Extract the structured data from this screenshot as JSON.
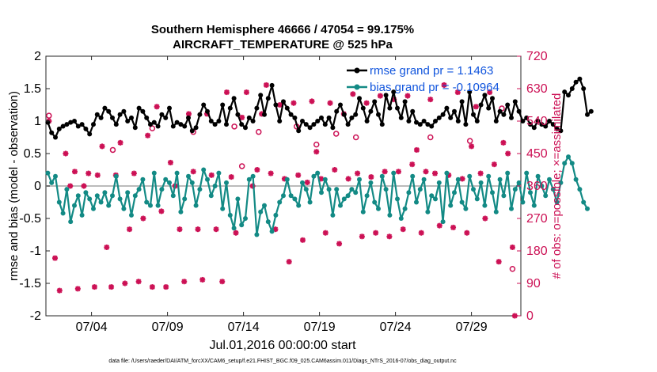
{
  "chart_data": {
    "type": "line",
    "title": "Southern Hemisphere 46666 / 47054 = 99.175%",
    "subtitle": "AIRCRAFT_TEMPERATURE @ 525 hPa",
    "xlabel": "Jul.01,2016 00:00:00 start",
    "ylabel": "rmse and bias (model - observation)",
    "y2label": "# of obs: o=possible; ×=assimilated",
    "footer": "data file: /Users/raeder/DAI/ATM_forcXX/CAM6_setup/f.e21.FHIST_BGC.f09_025.CAM6assim.011/Diags_NTrS_2016-07/obs_diag_output.nc",
    "xlim": [
      1,
      32.25
    ],
    "ylim": [
      -2,
      2
    ],
    "y2lim": [
      0,
      720
    ],
    "x_ticks": [
      {
        "value": 4,
        "label": "07/04"
      },
      {
        "value": 9,
        "label": "07/09"
      },
      {
        "value": 14,
        "label": "07/14"
      },
      {
        "value": 19,
        "label": "07/19"
      },
      {
        "value": 24,
        "label": "07/24"
      },
      {
        "value": 29,
        "label": "07/29"
      }
    ],
    "y_ticks": [
      "-2",
      "-1.5",
      "-1",
      "-0.5",
      "0",
      "0.5",
      "1",
      "1.5",
      "2"
    ],
    "y2_ticks": [
      "0",
      "90",
      "180",
      "270",
      "360",
      "450",
      "540",
      "630",
      "720"
    ],
    "x_start": 1.125,
    "x_step": 0.25,
    "colors": {
      "rmse": "#000000",
      "bias": "#138a85",
      "obs": "#cc1155",
      "zero": "#bbbbbb"
    },
    "series": [
      {
        "name": "rmse grand pr = 1.1463",
        "values": [
          0.98,
          0.82,
          0.75,
          0.88,
          0.92,
          0.95,
          0.98,
          1.0,
          0.92,
          0.95,
          0.88,
          0.8,
          0.95,
          1.1,
          1.05,
          1.2,
          1.15,
          1.05,
          0.95,
          1.1,
          1.15,
          1.0,
          1.05,
          0.9,
          1.2,
          1.15,
          1.05,
          0.95,
          0.98,
          0.92,
          1.1,
          1.05,
          1.2,
          0.92,
          0.98,
          0.95,
          0.92,
          1.05,
          0.85,
          0.9,
          1.1,
          1.25,
          1.15,
          1.0,
          0.95,
          1.0,
          1.25,
          0.95,
          1.2,
          1.35,
          1.1,
          0.95,
          0.9,
          1.05,
          1.0,
          1.2,
          1.4,
          1.1,
          1.35,
          1.55,
          1.25,
          1.0,
          1.3,
          1.2,
          1.1,
          1.05,
          0.85,
          1.0,
          0.95,
          0.9,
          0.95,
          1.0,
          1.05,
          0.95,
          1.05,
          0.9,
          1.15,
          1.25,
          1.1,
          0.95,
          1.05,
          1.1,
          1.35,
          1.2,
          1.0,
          1.15,
          1.3,
          1.1,
          0.95,
          1.4,
          1.2,
          1.45,
          1.2,
          1.05,
          1.3,
          1.0,
          1.15,
          0.98,
          0.95,
          1.0,
          0.95,
          0.92,
          1.0,
          1.05,
          1.1,
          1.2,
          1.05,
          1.15,
          1.0,
          1.3,
          0.95,
          1.45,
          1.1,
          1.0,
          1.25,
          1.4,
          1.2,
          1.35,
          1.0,
          1.15,
          1.1,
          1.25,
          1.05,
          1.3,
          1.15,
          1.0,
          1.05,
          0.95,
          0.9,
          1.0,
          0.95,
          0.92,
          1.0,
          0.95,
          0.88,
          0.85,
          1.45,
          1.4,
          1.5,
          1.6,
          1.65,
          1.5,
          1.1,
          1.15
        ]
      },
      {
        "name": "bias grand pr = -0.10964",
        "values": [
          0.2,
          0.05,
          0.15,
          -0.25,
          -0.42,
          -0.05,
          -0.55,
          -0.3,
          -0.15,
          -0.45,
          -0.1,
          -0.2,
          -0.35,
          -0.15,
          -0.25,
          -0.1,
          -0.3,
          -0.15,
          0.15,
          -0.2,
          -0.35,
          -0.1,
          -0.45,
          -0.15,
          -0.05,
          0.1,
          -0.25,
          -0.3,
          0.2,
          -0.3,
          -0.05,
          0.1,
          0.05,
          -0.15,
          0.2,
          -0.4,
          -0.2,
          0.15,
          0.05,
          -0.3,
          -0.05,
          0.25,
          0.1,
          -0.15,
          0.0,
          0.2,
          -0.35,
          0.05,
          -0.45,
          -0.65,
          -0.2,
          -0.6,
          -0.5,
          0.1,
          0.15,
          -0.75,
          -0.4,
          -0.3,
          -0.55,
          -0.7,
          -0.45,
          -0.25,
          -0.15,
          0.1,
          -0.15,
          -0.2,
          -0.3,
          0.05,
          -0.05,
          -0.25,
          0.15,
          0.2,
          -0.1,
          0.1,
          -0.05,
          -0.45,
          -0.05,
          -0.3,
          -0.2,
          -0.15,
          -0.05,
          -0.1,
          0.1,
          -0.4,
          -0.15,
          0.05,
          -0.25,
          -0.35,
          0.15,
          -0.05,
          -0.45,
          0.2,
          -0.2,
          -0.5,
          -0.35,
          -0.1,
          0.15,
          -0.25,
          -0.05,
          0.1,
          -0.4,
          -0.15,
          -0.2,
          0.05,
          -0.55,
          0.2,
          -0.3,
          -0.1,
          0.1,
          -0.25,
          -0.35,
          0.15,
          -0.05,
          -0.2,
          0.05,
          -0.3,
          0.15,
          -0.1,
          -0.4,
          0.1,
          -0.15,
          0.2,
          -0.35,
          -0.05,
          0.05,
          -0.25,
          0.2,
          -0.1,
          -0.3,
          0.15,
          0.0,
          -0.15,
          0.1,
          -0.05,
          -0.25,
          0.05,
          0.35,
          0.45,
          0.35,
          0.1,
          -0.05,
          -0.25,
          -0.35
        ]
      }
    ],
    "obs_assimilated": [
      {
        "x": 1.2,
        "y": 540
      },
      {
        "x": 1.6,
        "y": 160
      },
      {
        "x": 1.9,
        "y": 70
      },
      {
        "x": 2.3,
        "y": 450
      },
      {
        "x": 2.6,
        "y": 360
      },
      {
        "x": 2.9,
        "y": 400
      },
      {
        "x": 3.1,
        "y": 75
      },
      {
        "x": 3.5,
        "y": 360
      },
      {
        "x": 3.8,
        "y": 395
      },
      {
        "x": 4.2,
        "y": 80
      },
      {
        "x": 4.4,
        "y": 390
      },
      {
        "x": 4.7,
        "y": 470
      },
      {
        "x": 5.0,
        "y": 190
      },
      {
        "x": 5.3,
        "y": 80
      },
      {
        "x": 5.6,
        "y": 390
      },
      {
        "x": 5.9,
        "y": 480
      },
      {
        "x": 6.2,
        "y": 90
      },
      {
        "x": 6.5,
        "y": 240
      },
      {
        "x": 6.8,
        "y": 395
      },
      {
        "x": 7.1,
        "y": 95
      },
      {
        "x": 7.4,
        "y": 270
      },
      {
        "x": 7.7,
        "y": 500
      },
      {
        "x": 8.0,
        "y": 80
      },
      {
        "x": 8.3,
        "y": 580
      },
      {
        "x": 8.6,
        "y": 290
      },
      {
        "x": 8.9,
        "y": 80
      },
      {
        "x": 9.2,
        "y": 425
      },
      {
        "x": 9.5,
        "y": 360
      },
      {
        "x": 9.8,
        "y": 240
      },
      {
        "x": 10.1,
        "y": 95
      },
      {
        "x": 10.4,
        "y": 560
      },
      {
        "x": 10.7,
        "y": 400
      },
      {
        "x": 11.0,
        "y": 240
      },
      {
        "x": 11.3,
        "y": 100
      },
      {
        "x": 11.6,
        "y": 560
      },
      {
        "x": 11.9,
        "y": 390
      },
      {
        "x": 12.2,
        "y": 240
      },
      {
        "x": 12.6,
        "y": 95
      },
      {
        "x": 12.9,
        "y": 620
      },
      {
        "x": 13.2,
        "y": 385
      },
      {
        "x": 13.5,
        "y": 230
      },
      {
        "x": 13.9,
        "y": 550
      },
      {
        "x": 14.2,
        "y": 620
      },
      {
        "x": 14.6,
        "y": 360
      },
      {
        "x": 14.9,
        "y": 405
      },
      {
        "x": 15.2,
        "y": 560
      },
      {
        "x": 15.5,
        "y": 640
      },
      {
        "x": 15.8,
        "y": 395
      },
      {
        "x": 16.1,
        "y": 240
      },
      {
        "x": 16.4,
        "y": 585
      },
      {
        "x": 16.7,
        "y": 380
      },
      {
        "x": 17.0,
        "y": 150
      },
      {
        "x": 17.3,
        "y": 590
      },
      {
        "x": 17.6,
        "y": 390
      },
      {
        "x": 17.9,
        "y": 210
      },
      {
        "x": 18.2,
        "y": 370
      },
      {
        "x": 18.5,
        "y": 595
      },
      {
        "x": 18.8,
        "y": 455
      },
      {
        "x": 19.1,
        "y": 380
      },
      {
        "x": 19.4,
        "y": 230
      },
      {
        "x": 19.7,
        "y": 590
      },
      {
        "x": 20.0,
        "y": 405
      },
      {
        "x": 20.3,
        "y": 200
      },
      {
        "x": 20.6,
        "y": 560
      },
      {
        "x": 20.9,
        "y": 380
      },
      {
        "x": 21.2,
        "y": 615
      },
      {
        "x": 21.5,
        "y": 395
      },
      {
        "x": 21.8,
        "y": 220
      },
      {
        "x": 22.1,
        "y": 590
      },
      {
        "x": 22.4,
        "y": 385
      },
      {
        "x": 22.7,
        "y": 230
      },
      {
        "x": 23.0,
        "y": 610
      },
      {
        "x": 23.3,
        "y": 400
      },
      {
        "x": 23.6,
        "y": 220
      },
      {
        "x": 23.9,
        "y": 600
      },
      {
        "x": 24.2,
        "y": 400
      },
      {
        "x": 24.5,
        "y": 240
      },
      {
        "x": 24.8,
        "y": 610
      },
      {
        "x": 25.1,
        "y": 420
      },
      {
        "x": 25.4,
        "y": 460
      },
      {
        "x": 25.7,
        "y": 230
      },
      {
        "x": 26.0,
        "y": 400
      },
      {
        "x": 26.3,
        "y": 600
      },
      {
        "x": 26.6,
        "y": 395
      },
      {
        "x": 26.9,
        "y": 250
      },
      {
        "x": 27.2,
        "y": 640
      },
      {
        "x": 27.5,
        "y": 390
      },
      {
        "x": 27.8,
        "y": 245
      },
      {
        "x": 28.1,
        "y": 620
      },
      {
        "x": 28.4,
        "y": 380
      },
      {
        "x": 28.7,
        "y": 230
      },
      {
        "x": 29.0,
        "y": 470
      },
      {
        "x": 29.3,
        "y": 580
      },
      {
        "x": 29.6,
        "y": 395
      },
      {
        "x": 29.9,
        "y": 270
      },
      {
        "x": 30.2,
        "y": 620
      },
      {
        "x": 30.5,
        "y": 420
      },
      {
        "x": 30.8,
        "y": 150
      },
      {
        "x": 31.1,
        "y": 480
      },
      {
        "x": 31.4,
        "y": 450
      },
      {
        "x": 31.7,
        "y": 190
      },
      {
        "x": 31.85,
        "y": 0
      }
    ],
    "obs_possible": [
      {
        "x": 1.2,
        "y": 555
      },
      {
        "x": 5.4,
        "y": 460
      },
      {
        "x": 8.0,
        "y": 520
      },
      {
        "x": 10.7,
        "y": 510
      },
      {
        "x": 13.4,
        "y": 525
      },
      {
        "x": 13.9,
        "y": 415
      },
      {
        "x": 15.0,
        "y": 510
      },
      {
        "x": 17.5,
        "y": 525
      },
      {
        "x": 18.8,
        "y": 475
      },
      {
        "x": 20.1,
        "y": 505
      },
      {
        "x": 21.4,
        "y": 495
      },
      {
        "x": 26.3,
        "y": 495
      },
      {
        "x": 28.9,
        "y": 485
      },
      {
        "x": 31.0,
        "y": 575
      },
      {
        "x": 31.7,
        "y": 130
      }
    ],
    "legend_position": "top-right",
    "grid": false
  }
}
